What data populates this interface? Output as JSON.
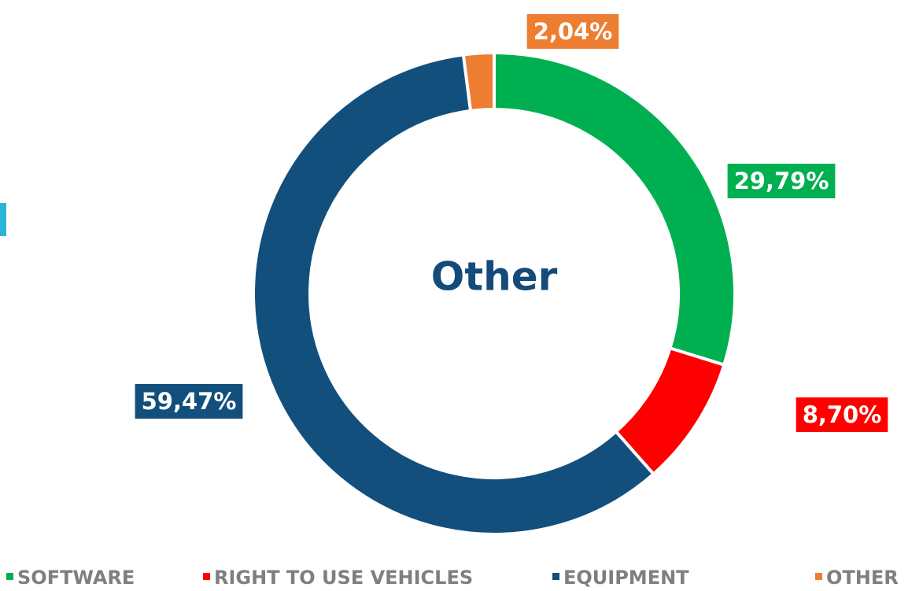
{
  "chart_data": {
    "type": "donut",
    "center_label": "Other",
    "categories": [
      "SOFTWARE",
      "RIGHT TO USE VEHICLES",
      "EQUIPMENT",
      "OTHER"
    ],
    "values": [
      29.79,
      8.7,
      59.47,
      2.04
    ],
    "value_labels": [
      "29,79%",
      "8,70%",
      "59,47%",
      "2,04%"
    ],
    "colors": [
      "#00b050",
      "#ff0000",
      "#134f7c",
      "#ed7d31"
    ],
    "legend": "bottom"
  }
}
